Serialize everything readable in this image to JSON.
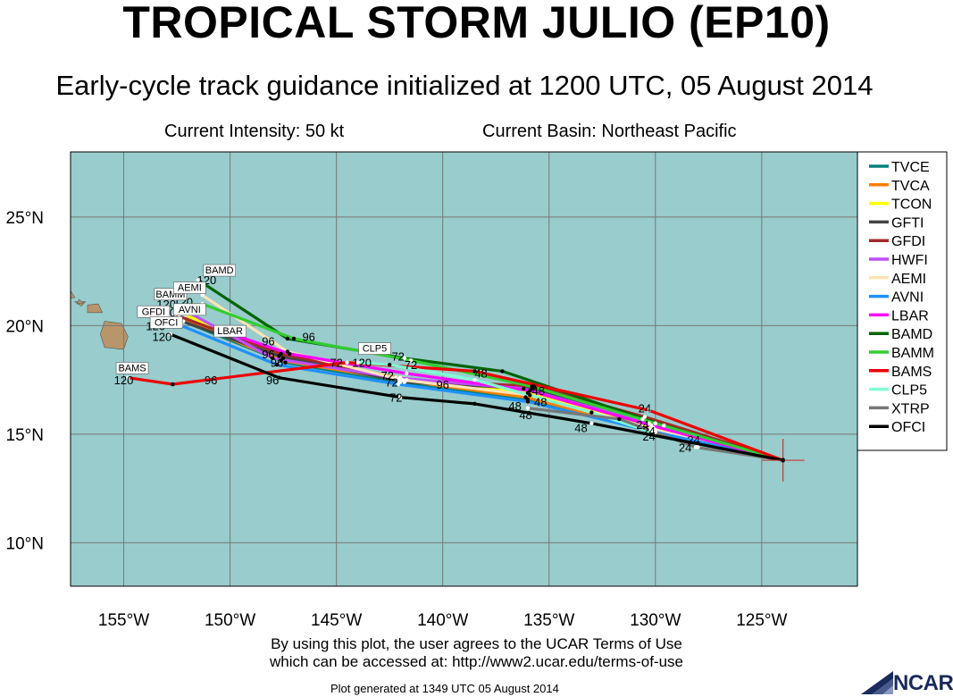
{
  "header": {
    "title": "TROPICAL STORM JULIO (EP10)",
    "subtitle": "Early-cycle track guidance initialized at 1200 UTC, 05 August 2014",
    "current_intensity": "Current Intensity: 50 kt",
    "current_basin": "Current Basin: Northeast Pacific"
  },
  "footer": {
    "terms_line1": "By using this plot, the user agrees to the UCAR Terms of Use",
    "terms_line2": "which can be accessed at: http://www2.ucar.edu/terms-of-use",
    "generated": "Plot generated at 1349 UTC   05 August 2014",
    "logo_text": "NCAR"
  },
  "colors": {
    "ocean": "#99cccc",
    "land": "#b8956a",
    "grid": "#777777"
  },
  "chart_data": {
    "type": "map",
    "axes": {
      "lon_range": [
        -157.5,
        -120.5
      ],
      "lat_range": [
        8,
        28
      ],
      "x_ticks": [
        {
          "lon": -155,
          "label": "155°W"
        },
        {
          "lon": -150,
          "label": "150°W"
        },
        {
          "lon": -145,
          "label": "145°W"
        },
        {
          "lon": -140,
          "label": "140°W"
        },
        {
          "lon": -135,
          "label": "135°W"
        },
        {
          "lon": -130,
          "label": "130°W"
        },
        {
          "lon": -125,
          "label": "125°W"
        }
      ],
      "y_ticks": [
        {
          "lat": 10,
          "label": "10°N"
        },
        {
          "lat": 15,
          "label": "15°N"
        },
        {
          "lat": 20,
          "label": "20°N"
        },
        {
          "lat": 25,
          "label": "25°N"
        }
      ],
      "grid": true
    },
    "legend_position": "right",
    "initial_position": {
      "lon": -124.0,
      "lat": 13.8
    },
    "tracks": [
      {
        "name": "TVCE",
        "color": "#008080",
        "points": [
          [
            -124.0,
            13.8
          ],
          [
            -130.1,
            15.1
          ],
          [
            -136.0,
            16.6
          ],
          [
            -142.0,
            17.4
          ],
          [
            -147.4,
            18.3
          ],
          [
            -152.2,
            20.2
          ]
        ]
      },
      {
        "name": "TVCA",
        "color": "#ff7f00",
        "points": [
          [
            -124.0,
            13.8
          ],
          [
            -130.2,
            15.2
          ],
          [
            -136.1,
            16.7
          ],
          [
            -142.1,
            17.5
          ],
          [
            -147.6,
            18.4
          ],
          [
            -152.4,
            20.4
          ]
        ]
      },
      {
        "name": "TCON",
        "color": "#ffff00",
        "points": [
          [
            -124.0,
            13.8
          ],
          [
            -130.1,
            15.3
          ],
          [
            -136.0,
            16.9
          ],
          [
            -142.0,
            17.6
          ],
          [
            -147.5,
            18.5
          ],
          [
            -152.1,
            20.5
          ]
        ]
      },
      {
        "name": "GFTI",
        "color": "#444444",
        "points": [
          [
            -124.0,
            13.8
          ],
          [
            -130.6,
            15.7
          ],
          [
            -135.8,
            17.1
          ],
          [
            -141.8,
            17.4
          ],
          [
            -147.7,
            18.6
          ],
          [
            -152.8,
            20.4
          ]
        ]
      },
      {
        "name": "GFDI",
        "color": "#a52a2a",
        "points": [
          [
            -124.0,
            13.8
          ],
          [
            -130.5,
            15.8
          ],
          [
            -135.7,
            17.2
          ],
          [
            -141.7,
            17.5
          ],
          [
            -147.6,
            18.7
          ],
          [
            -152.6,
            20.5
          ]
        ]
      },
      {
        "name": "HWFI",
        "color": "#bf4fff",
        "points": [
          [
            -124.0,
            13.8
          ],
          [
            -130.3,
            15.5
          ],
          [
            -136.2,
            17.1
          ],
          [
            -142.2,
            17.6
          ],
          [
            -148.0,
            18.5
          ],
          [
            -152.5,
            20.9
          ]
        ]
      },
      {
        "name": "AEMI",
        "color": "#ffe4b5",
        "points": [
          [
            -124.0,
            13.8
          ],
          [
            -130.0,
            15.2
          ],
          [
            -135.9,
            16.8
          ],
          [
            -141.9,
            17.5
          ],
          [
            -147.3,
            18.8
          ],
          [
            -151.3,
            21.4
          ]
        ]
      },
      {
        "name": "AVNI",
        "color": "#1e90ff",
        "points": [
          [
            -124.0,
            13.8
          ],
          [
            -130.0,
            15.1
          ],
          [
            -136.0,
            16.5
          ],
          [
            -142.1,
            17.3
          ],
          [
            -147.8,
            18.2
          ],
          [
            -152.3,
            20.0
          ]
        ]
      },
      {
        "name": "LBAR",
        "color": "#ff00ff",
        "points": [
          [
            -124.0,
            13.8
          ],
          [
            -130.2,
            15.4
          ],
          [
            -135.9,
            17.0
          ],
          [
            -141.7,
            17.8
          ],
          [
            -147.2,
            18.7
          ],
          [
            -150.5,
            19.8
          ]
        ]
      },
      {
        "name": "BAMD",
        "color": "#006400",
        "points": [
          [
            -124.0,
            13.8
          ],
          [
            -129.6,
            15.4
          ],
          [
            -137.2,
            17.9
          ],
          [
            -141.8,
            18.5
          ],
          [
            -147.3,
            19.4
          ],
          [
            -151.5,
            22.1
          ]
        ]
      },
      {
        "name": "BAMM",
        "color": "#32cd32",
        "points": [
          [
            -124.0,
            13.8
          ],
          [
            -130.0,
            15.5
          ],
          [
            -135.8,
            17.2
          ],
          [
            -141.5,
            18.4
          ],
          [
            -147.0,
            19.4
          ],
          [
            -151.3,
            21.0
          ]
        ]
      },
      {
        "name": "BAMS",
        "color": "#ee0000",
        "points": [
          [
            -124.0,
            13.8
          ],
          [
            -130.3,
            16.1
          ],
          [
            -138.5,
            17.9
          ],
          [
            -144.5,
            18.3
          ],
          [
            -152.7,
            17.3
          ],
          [
            -154.8,
            17.6
          ]
        ]
      },
      {
        "name": "CLP5",
        "color": "#7fffd4",
        "points": [
          [
            -124.0,
            13.8
          ],
          [
            -128.0,
            14.4
          ],
          [
            -133.0,
            16.0
          ],
          [
            -138.5,
            17.5
          ],
          [
            -142.5,
            18.2
          ],
          [
            -144.0,
            18.3
          ]
        ]
      },
      {
        "name": "XTRP",
        "color": "#777777",
        "points": [
          [
            -124.0,
            13.8
          ],
          [
            -128.1,
            14.4
          ],
          [
            -131.7,
            15.7
          ],
          [
            -136.0,
            16.2
          ]
        ]
      },
      {
        "name": "OFCI",
        "color": "#000000",
        "points": [
          [
            -124.0,
            13.8
          ],
          [
            -133.0,
            15.5
          ],
          [
            -138.5,
            16.4
          ],
          [
            -142.0,
            16.7
          ],
          [
            -147.7,
            17.6
          ],
          [
            -152.8,
            19.6
          ]
        ]
      }
    ],
    "point_labels": [
      {
        "lon": -130.5,
        "lat": 16.0,
        "text": "24"
      },
      {
        "lon": -130.6,
        "lat": 15.25,
        "text": "24"
      },
      {
        "lon": -130.3,
        "lat": 14.95,
        "text": "24"
      },
      {
        "lon": -130.3,
        "lat": 14.7,
        "text": "24"
      },
      {
        "lon": -128.2,
        "lat": 14.55,
        "text": "24"
      },
      {
        "lon": -128.6,
        "lat": 14.2,
        "text": "24"
      },
      {
        "lon": -133.5,
        "lat": 15.1,
        "text": "48"
      },
      {
        "lon": -135.5,
        "lat": 16.8,
        "text": "48"
      },
      {
        "lon": -136.6,
        "lat": 16.1,
        "text": "48"
      },
      {
        "lon": -138.2,
        "lat": 17.6,
        "text": "48"
      },
      {
        "lon": -136.1,
        "lat": 15.7,
        "text": "48"
      },
      {
        "lon": -135.4,
        "lat": 16.3,
        "text": "48"
      },
      {
        "lon": -141.5,
        "lat": 18.0,
        "text": "72"
      },
      {
        "lon": -142.1,
        "lat": 18.4,
        "text": "72"
      },
      {
        "lon": -142.6,
        "lat": 17.5,
        "text": "72"
      },
      {
        "lon": -142.4,
        "lat": 17.2,
        "text": "72"
      },
      {
        "lon": -142.2,
        "lat": 16.5,
        "text": "72"
      },
      {
        "lon": -145.0,
        "lat": 18.1,
        "text": "72"
      },
      {
        "lon": -140.0,
        "lat": 17.1,
        "text": "96"
      },
      {
        "lon": -146.3,
        "lat": 19.3,
        "text": "96"
      },
      {
        "lon": -148.2,
        "lat": 19.1,
        "text": "96"
      },
      {
        "lon": -148.2,
        "lat": 18.5,
        "text": "96"
      },
      {
        "lon": -147.8,
        "lat": 18.1,
        "text": "96"
      },
      {
        "lon": -148.0,
        "lat": 17.3,
        "text": "96"
      },
      {
        "lon": -150.9,
        "lat": 17.3,
        "text": "96"
      },
      {
        "lon": -151.1,
        "lat": 21.9,
        "text": "120"
      },
      {
        "lon": -153.0,
        "lat": 20.8,
        "text": "120"
      },
      {
        "lon": -153.0,
        "lat": 20.4,
        "text": "120"
      },
      {
        "lon": -153.5,
        "lat": 19.8,
        "text": "120"
      },
      {
        "lon": -153.2,
        "lat": 19.3,
        "text": "120"
      },
      {
        "lon": -155.0,
        "lat": 17.3,
        "text": "120"
      },
      {
        "lon": -143.8,
        "lat": 18.1,
        "text": "120"
      },
      {
        "lon": -152.2,
        "lat": 20.9,
        "text": "120"
      }
    ],
    "model_tags": [
      {
        "lon": -150.5,
        "lat": 22.4,
        "text": "BAMD"
      },
      {
        "lon": -152.8,
        "lat": 21.3,
        "text": "BAMM"
      },
      {
        "lon": -151.9,
        "lat": 21.6,
        "text": "AEMI"
      },
      {
        "lon": -151.9,
        "lat": 20.6,
        "text": "AVNI"
      },
      {
        "lon": -153.6,
        "lat": 20.5,
        "text": "GFDI"
      },
      {
        "lon": -153.0,
        "lat": 20.0,
        "text": "OFCI"
      },
      {
        "lon": -150.0,
        "lat": 19.6,
        "text": "LBAR"
      },
      {
        "lon": -143.2,
        "lat": 18.8,
        "text": "CLP5"
      },
      {
        "lon": -154.6,
        "lat": 17.9,
        "text": "BAMS"
      }
    ]
  }
}
